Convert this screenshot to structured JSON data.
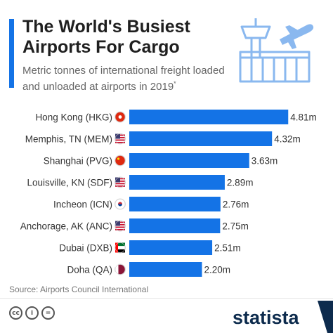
{
  "header": {
    "title": "The World's Busiest Airports For Cargo",
    "subtitle": "Metric tonnes of international freight loaded and unloaded at airports in 2019",
    "subtitle_mark": "*"
  },
  "colors": {
    "accent": "#1473e6",
    "bar": "#1473e6",
    "title": "#1f1f1f",
    "text": "#333333",
    "muted": "#666666"
  },
  "icons": {
    "hero": "airport-control-tower-airplane-icon",
    "creative_commons": [
      "cc-icon",
      "by-icon",
      "nd-icon"
    ]
  },
  "chart_data": {
    "type": "bar",
    "orientation": "horizontal",
    "categories": [
      "Hong Kong (HKG)",
      "Memphis, TN (MEM)",
      "Shanghai (PVG)",
      "Louisville, KN (SDF)",
      "Incheon (ICN)",
      "Anchorage, AK (ANC)",
      "Dubai (DXB)",
      "Doha (QA)"
    ],
    "flags": [
      "hong-kong-flag-icon",
      "usa-flag-icon",
      "china-flag-icon",
      "usa-flag-icon",
      "south-korea-flag-icon",
      "usa-flag-icon",
      "uae-flag-icon",
      "qatar-flag-icon"
    ],
    "values": [
      4.81,
      4.32,
      3.63,
      2.89,
      2.76,
      2.75,
      2.51,
      2.2
    ],
    "value_labels": [
      "4.81m",
      "4.32m",
      "3.63m",
      "2.89m",
      "2.76m",
      "2.75m",
      "2.51m",
      "2.20m"
    ],
    "xlim": [
      0,
      5.4
    ],
    "grid": false,
    "legend": "none"
  },
  "footer": {
    "source": "Source: Airports Council International",
    "brand": "statista"
  }
}
